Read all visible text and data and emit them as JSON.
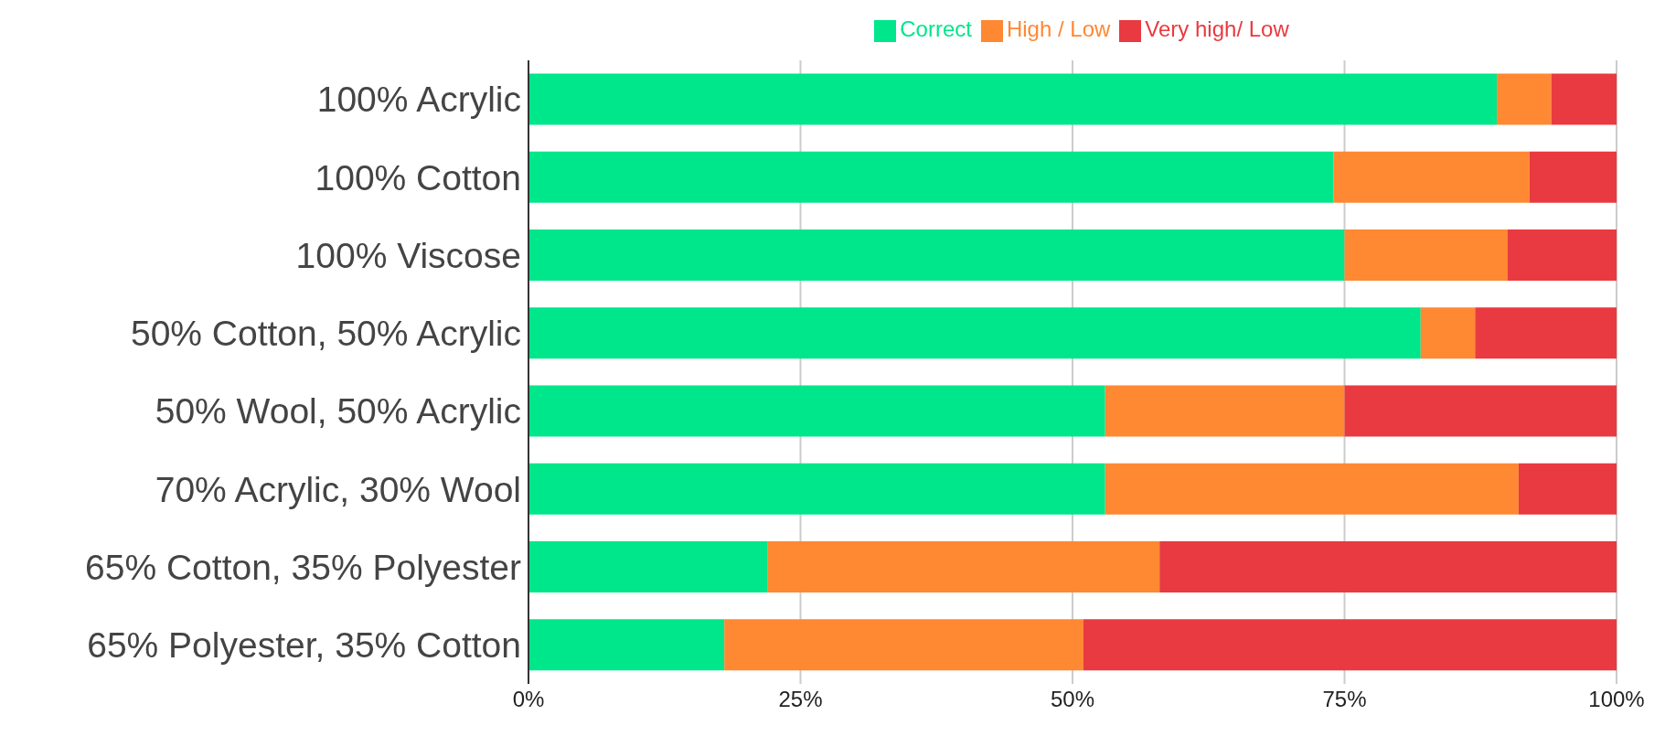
{
  "chart_data": {
    "type": "bar",
    "orientation": "horizontal",
    "stacked": true,
    "categories": [
      "100% Acrylic",
      "100% Cotton",
      "100% Viscose",
      "50% Cotton, 50% Acrylic",
      "50% Wool, 50% Acrylic",
      "70% Acrylic, 30% Wool",
      "65% Cotton, 35% Polyester",
      "65% Polyester, 35% Cotton"
    ],
    "series": [
      {
        "name": "Correct",
        "color": "#00e68a",
        "values": [
          89,
          74,
          75,
          82,
          53,
          53,
          22,
          18
        ]
      },
      {
        "name": "High / Low",
        "color": "#ff8833",
        "values": [
          5,
          18,
          15,
          5,
          22,
          38,
          36,
          33
        ]
      },
      {
        "name": "Very high/ Low",
        "color": "#e83a40",
        "values": [
          6,
          8,
          10,
          13,
          25,
          9,
          42,
          49
        ]
      }
    ],
    "xlim": [
      0,
      100
    ],
    "xticks": [
      {
        "value": 0,
        "label": "0%"
      },
      {
        "value": 25,
        "label": "25%"
      },
      {
        "value": 50,
        "label": "50%"
      },
      {
        "value": 75,
        "label": "75%"
      },
      {
        "value": 100,
        "label": "100%"
      }
    ],
    "grid": "x",
    "legend": "top"
  }
}
